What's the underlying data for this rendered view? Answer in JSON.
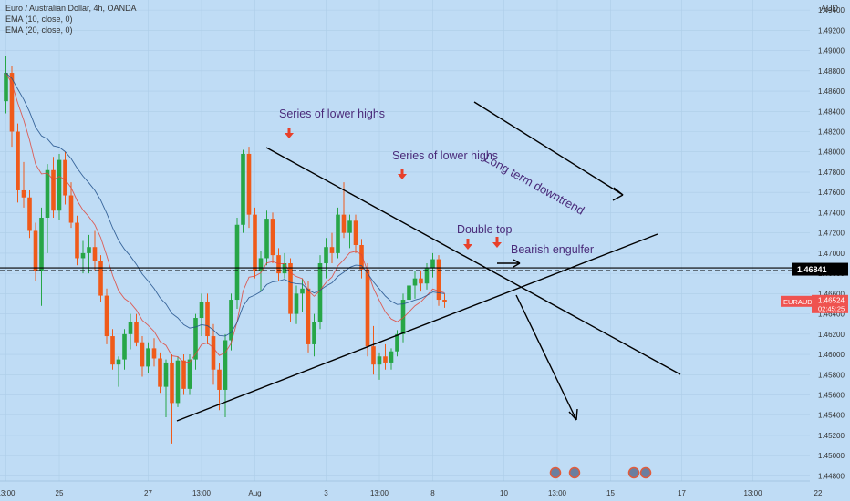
{
  "header": {
    "symbol_line": "Euro / Australian Dollar, 4h, OANDA",
    "indicators": [
      "EMA (10, close, 0)",
      "EMA (20, close, 0)"
    ]
  },
  "annotations": {
    "lower_highs_1": "Series of lower highs",
    "lower_highs_2": "Series of lower highs",
    "double_top": "Double top",
    "bearish_engulfer": "Bearish engulfer",
    "long_term": "Long term downtrend"
  },
  "colors": {
    "background": "#bfdcf5",
    "bull": "#27a647",
    "bear": "#ef5a1a",
    "ema10": "#e0453a",
    "ema20": "#1f4f8a",
    "annotation_text": "#4a2b7a",
    "arrow": "#e8402a",
    "price_badge": "#ef5350"
  },
  "chart_data": {
    "type": "candlestick",
    "instrument": "Euro / Australian Dollar",
    "timeframe": "4h",
    "source": "OANDA",
    "currency": "AUD",
    "ylim": [
      1.4475,
      1.495
    ],
    "y_ticks": [
      "1.49400",
      "1.49200",
      "1.49000",
      "1.48800",
      "1.48600",
      "1.48400",
      "1.48200",
      "1.48000",
      "1.47800",
      "1.47600",
      "1.47400",
      "1.47200",
      "1.47000",
      "1.46800",
      "1.46600",
      "1.46400",
      "1.46200",
      "1.46000",
      "1.45800",
      "1.45600",
      "1.45400",
      "1.45200",
      "1.45000",
      "1.44800"
    ],
    "x_ticks": [
      {
        "label": "13:00",
        "i": 0
      },
      {
        "label": "25",
        "i": 9
      },
      {
        "label": "27",
        "i": 24
      },
      {
        "label": "13:00",
        "i": 33
      },
      {
        "label": "Aug",
        "i": 42
      },
      {
        "label": "3",
        "i": 54
      },
      {
        "label": "13:00",
        "i": 63
      },
      {
        "label": "8",
        "i": 72
      },
      {
        "label": "10",
        "i": 84
      },
      {
        "label": "13:00",
        "i": 93
      },
      {
        "label": "15",
        "i": 102
      },
      {
        "label": "17",
        "i": 114
      },
      {
        "label": "13:00",
        "i": 126
      },
      {
        "label": "22",
        "i": 137
      }
    ],
    "horizontal_line": {
      "value": 1.46841,
      "label": "1.46841"
    },
    "last_price": {
      "symbol": "EURAUD",
      "value": "1.46524",
      "countdown": "02:45:25"
    },
    "candles": [
      [
        1.485,
        1.4895,
        1.4838,
        1.4878
      ],
      [
        1.4878,
        1.4885,
        1.4805,
        1.482
      ],
      [
        1.482,
        1.4828,
        1.475,
        1.4762
      ],
      [
        1.4762,
        1.479,
        1.4745,
        1.4755
      ],
      [
        1.4755,
        1.4762,
        1.4715,
        1.4722
      ],
      [
        1.4722,
        1.473,
        1.4672,
        1.4682
      ],
      [
        1.4682,
        1.4745,
        1.4648,
        1.4735
      ],
      [
        1.4735,
        1.4788,
        1.47,
        1.4782
      ],
      [
        1.4782,
        1.4795,
        1.4735,
        1.4742
      ],
      [
        1.4742,
        1.4798,
        1.4733,
        1.4792
      ],
      [
        1.4792,
        1.48,
        1.4748,
        1.4757
      ],
      [
        1.4757,
        1.477,
        1.4725,
        1.473
      ],
      [
        1.473,
        1.4737,
        1.4688,
        1.4695
      ],
      [
        1.4695,
        1.4712,
        1.468,
        1.47
      ],
      [
        1.47,
        1.4718,
        1.468,
        1.4706
      ],
      [
        1.4706,
        1.4722,
        1.4683,
        1.4692
      ],
      [
        1.4692,
        1.4698,
        1.4652,
        1.4658
      ],
      [
        1.4658,
        1.4665,
        1.461,
        1.4618
      ],
      [
        1.4618,
        1.4625,
        1.4585,
        1.459
      ],
      [
        1.459,
        1.4598,
        1.4568,
        1.4595
      ],
      [
        1.4595,
        1.4625,
        1.4585,
        1.462
      ],
      [
        1.462,
        1.464,
        1.4605,
        1.4632
      ],
      [
        1.4632,
        1.464,
        1.4608,
        1.4612
      ],
      [
        1.4612,
        1.4618,
        1.4578,
        1.4588
      ],
      [
        1.4588,
        1.4612,
        1.4582,
        1.4606
      ],
      [
        1.4606,
        1.4616,
        1.4588,
        1.4596
      ],
      [
        1.4596,
        1.4602,
        1.4562,
        1.4568
      ],
      [
        1.4568,
        1.4595,
        1.4538,
        1.4592
      ],
      [
        1.4592,
        1.46,
        1.4512,
        1.4552
      ],
      [
        1.4552,
        1.4598,
        1.4548,
        1.4594
      ],
      [
        1.4594,
        1.46,
        1.456,
        1.4566
      ],
      [
        1.4566,
        1.46,
        1.456,
        1.4595
      ],
      [
        1.4595,
        1.464,
        1.4585,
        1.4636
      ],
      [
        1.4636,
        1.466,
        1.4618,
        1.4652
      ],
      [
        1.4652,
        1.466,
        1.461,
        1.4618
      ],
      [
        1.4618,
        1.463,
        1.457,
        1.4585
      ],
      [
        1.4585,
        1.4592,
        1.4545,
        1.4565
      ],
      [
        1.4565,
        1.462,
        1.4538,
        1.4614
      ],
      [
        1.4614,
        1.466,
        1.4604,
        1.4654
      ],
      [
        1.4654,
        1.4735,
        1.4645,
        1.4728
      ],
      [
        1.4728,
        1.4802,
        1.472,
        1.4798
      ],
      [
        1.4798,
        1.4805,
        1.4725,
        1.4738
      ],
      [
        1.4738,
        1.4745,
        1.4675,
        1.4682
      ],
      [
        1.4682,
        1.4702,
        1.4662,
        1.4695
      ],
      [
        1.4695,
        1.4742,
        1.4688,
        1.4734
      ],
      [
        1.4734,
        1.474,
        1.469,
        1.4698
      ],
      [
        1.4698,
        1.4705,
        1.4672,
        1.468
      ],
      [
        1.468,
        1.47,
        1.4675,
        1.469
      ],
      [
        1.469,
        1.4695,
        1.4632,
        1.464
      ],
      [
        1.464,
        1.4668,
        1.463,
        1.466
      ],
      [
        1.466,
        1.4675,
        1.4642,
        1.4665
      ],
      [
        1.4665,
        1.4672,
        1.4602,
        1.461
      ],
      [
        1.461,
        1.464,
        1.4598,
        1.4632
      ],
      [
        1.4632,
        1.4698,
        1.4625,
        1.469
      ],
      [
        1.469,
        1.4715,
        1.4675,
        1.4706
      ],
      [
        1.4706,
        1.472,
        1.469,
        1.47
      ],
      [
        1.47,
        1.4745,
        1.4695,
        1.4738
      ],
      [
        1.4738,
        1.477,
        1.4715,
        1.472
      ],
      [
        1.472,
        1.4738,
        1.4705,
        1.4732
      ],
      [
        1.4732,
        1.4738,
        1.47,
        1.4708
      ],
      [
        1.4708,
        1.4714,
        1.4675,
        1.4684
      ],
      [
        1.4684,
        1.469,
        1.4598,
        1.4608
      ],
      [
        1.4608,
        1.4628,
        1.458,
        1.459
      ],
      [
        1.459,
        1.4602,
        1.4575,
        1.4598
      ],
      [
        1.4598,
        1.461,
        1.4585,
        1.4592
      ],
      [
        1.4592,
        1.4606,
        1.4585,
        1.4603
      ],
      [
        1.4603,
        1.4624,
        1.4598,
        1.462
      ],
      [
        1.462,
        1.466,
        1.4612,
        1.4654
      ],
      [
        1.4654,
        1.4674,
        1.4648,
        1.4668
      ],
      [
        1.4668,
        1.4682,
        1.4655,
        1.4675
      ],
      [
        1.4675,
        1.4683,
        1.4662,
        1.467
      ],
      [
        1.467,
        1.469,
        1.4664,
        1.4685
      ],
      [
        1.4685,
        1.47,
        1.4676,
        1.4694
      ],
      [
        1.4694,
        1.4698,
        1.4648,
        1.4654
      ],
      [
        1.4654,
        1.466,
        1.4646,
        1.4652
      ]
    ],
    "ema_lines": [
      "EMA (10, close, 0)",
      "EMA (20, close, 0)"
    ]
  }
}
